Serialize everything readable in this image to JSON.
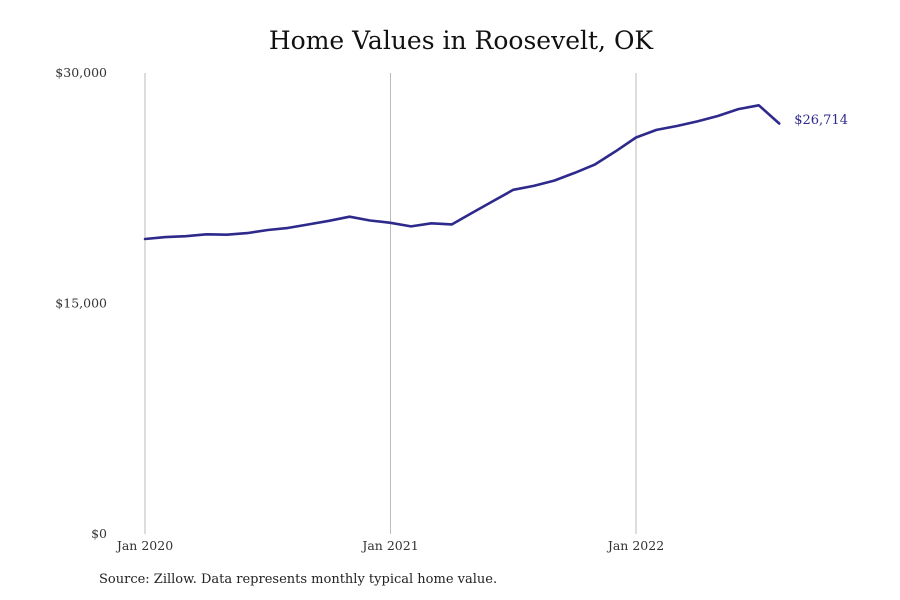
{
  "chart_data": {
    "type": "line",
    "title": "Home Values in Roosevelt, OK",
    "x": [
      "2020-01",
      "2020-02",
      "2020-03",
      "2020-04",
      "2020-05",
      "2020-06",
      "2020-07",
      "2020-08",
      "2020-09",
      "2020-10",
      "2020-11",
      "2020-12",
      "2021-01",
      "2021-02",
      "2021-03",
      "2021-04",
      "2021-05",
      "2021-06",
      "2021-07",
      "2021-08",
      "2021-09",
      "2021-10",
      "2021-11",
      "2021-12",
      "2022-01",
      "2022-02",
      "2022-03",
      "2022-04",
      "2022-05",
      "2022-06",
      "2022-07",
      "2022-08"
    ],
    "x_tick_labels": [
      "Jan 2020",
      "Jan 2021",
      "Jan 2022"
    ],
    "x_tick_values": [
      "2020-01",
      "2021-01",
      "2022-01"
    ],
    "y_tick_labels": [
      "$0",
      "$15,000",
      "$30,000"
    ],
    "y_tick_values": [
      0,
      15000,
      30000
    ],
    "ylim": [
      0,
      30000
    ],
    "series": [
      {
        "values": [
          19200,
          19320,
          19380,
          19500,
          19480,
          19580,
          19780,
          19920,
          20150,
          20380,
          20650,
          20400,
          20250,
          20020,
          20220,
          20150,
          20900,
          21650,
          22400,
          22650,
          23000,
          23500,
          24050,
          24900,
          25800,
          26300,
          26550,
          26850,
          27200,
          27650,
          27900,
          26714
        ],
        "color": "#2e2a8c",
        "end_label": "$26,714"
      }
    ],
    "grid": {
      "vertical_at_ticks": true,
      "horizontal": false
    },
    "gridline_color": "#bbbbbb",
    "xlabel": "",
    "ylabel": ""
  },
  "source_note": "Source: Zillow. Data represents monthly typical home value."
}
